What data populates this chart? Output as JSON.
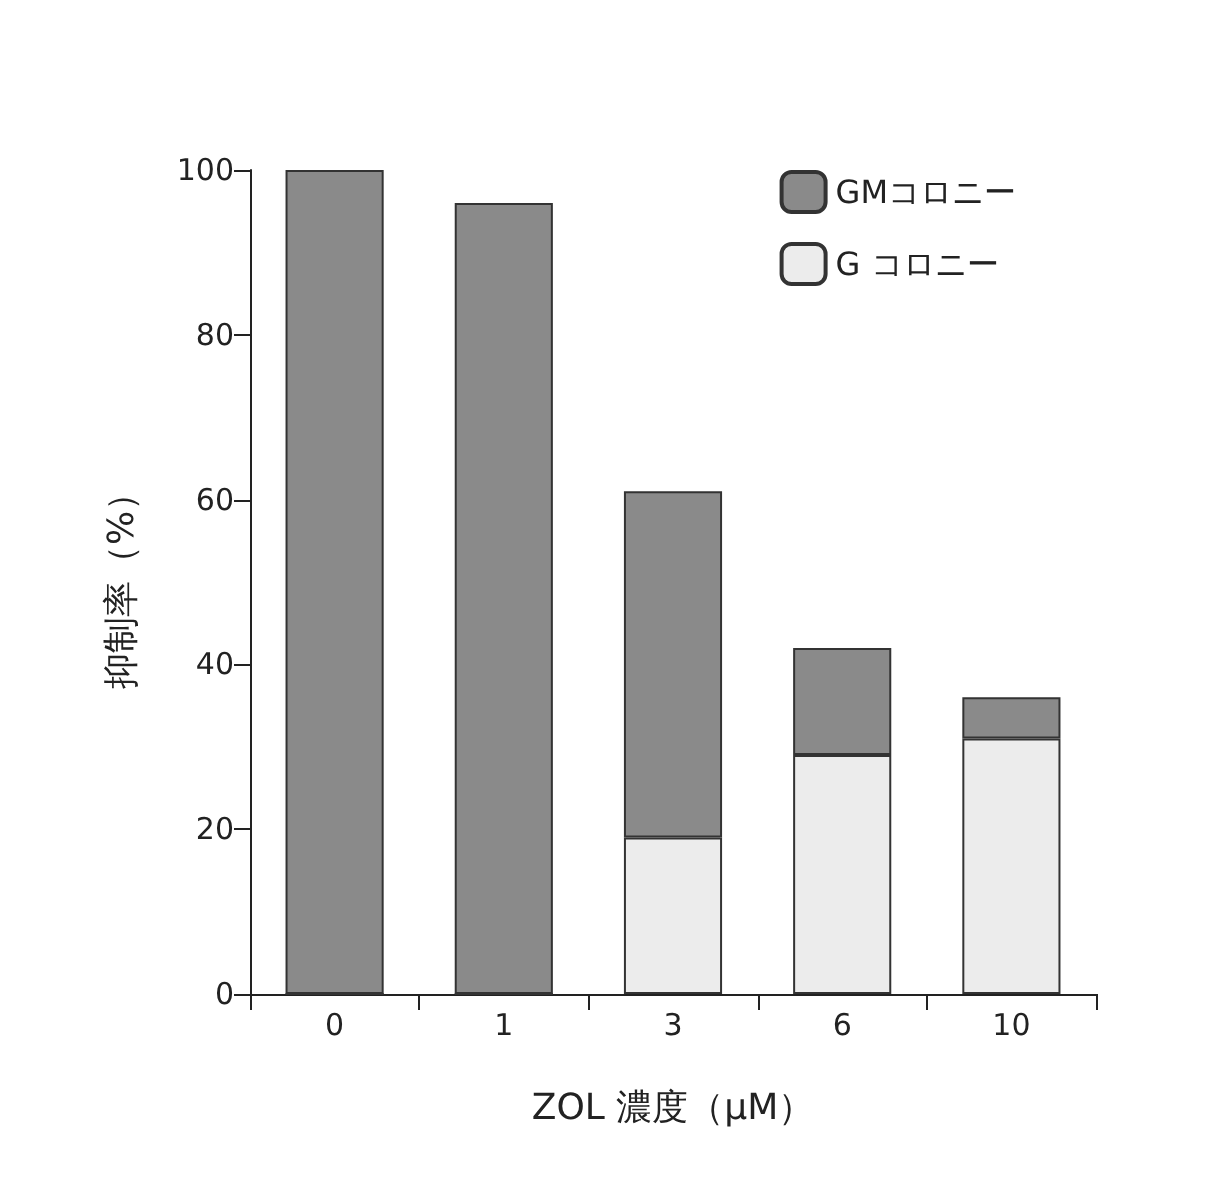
{
  "chart_data": {
    "type": "bar",
    "stacked": true,
    "xlabel": "ZOL 濃度（μM）",
    "ylabel": "抑制率（%）",
    "categories": [
      "0",
      "1",
      "3",
      "6",
      "10"
    ],
    "series": [
      {
        "name": "G コロニー",
        "color": "#ececec",
        "values": [
          0,
          0,
          19,
          29,
          31
        ]
      },
      {
        "name": "GMコロニー",
        "color": "#8a8a8a",
        "values": [
          100,
          96,
          42,
          13,
          5
        ]
      }
    ],
    "ylim": [
      0,
      100
    ],
    "yticks": [
      0,
      20,
      40,
      60,
      80,
      100
    ],
    "grid": false,
    "legend": "top right"
  }
}
